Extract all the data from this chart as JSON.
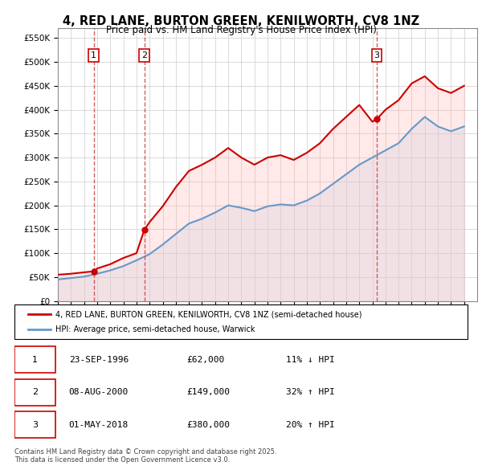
{
  "title": "4, RED LANE, BURTON GREEN, KENILWORTH, CV8 1NZ",
  "subtitle": "Price paid vs. HM Land Registry's House Price Index (HPI)",
  "ylabel_ticks": [
    "£0",
    "£50K",
    "£100K",
    "£150K",
    "£200K",
    "£250K",
    "£300K",
    "£350K",
    "£400K",
    "£450K",
    "£500K",
    "£550K"
  ],
  "ylim": [
    0,
    570000
  ],
  "ytick_values": [
    0,
    50000,
    100000,
    150000,
    200000,
    250000,
    300000,
    350000,
    400000,
    450000,
    500000,
    550000
  ],
  "xmin": 1994.0,
  "xmax": 2026.0,
  "sale_dates": [
    1996.73,
    2000.6,
    2018.33
  ],
  "sale_prices": [
    62000,
    149000,
    380000
  ],
  "sale_labels": [
    "1",
    "2",
    "3"
  ],
  "red_line_color": "#cc0000",
  "blue_line_color": "#6699cc",
  "blue_fill_color": "#cce0f0",
  "red_fill_color": "#ffcccc",
  "vline_color_1": "#8888cc",
  "vline_color_2": "#cc4444",
  "legend_entries": [
    "4, RED LANE, BURTON GREEN, KENILWORTH, CV8 1NZ (semi-detached house)",
    "HPI: Average price, semi-detached house, Warwick"
  ],
  "table_data": [
    [
      "1",
      "23-SEP-1996",
      "£62,000",
      "11% ↓ HPI"
    ],
    [
      "2",
      "08-AUG-2000",
      "£149,000",
      "32% ↑ HPI"
    ],
    [
      "3",
      "01-MAY-2018",
      "£380,000",
      "20% ↑ HPI"
    ]
  ],
  "footer": "Contains HM Land Registry data © Crown copyright and database right 2025.\nThis data is licensed under the Open Government Licence v3.0.",
  "background_color": "#ffffff",
  "hpi_years": [
    1994,
    1995,
    1996,
    1997,
    1998,
    1999,
    2000,
    2001,
    2002,
    2003,
    2004,
    2005,
    2006,
    2007,
    2008,
    2009,
    2010,
    2011,
    2012,
    2013,
    2014,
    2015,
    2016,
    2017,
    2018,
    2019,
    2020,
    2021,
    2022,
    2023,
    2024,
    2025
  ],
  "hpi_values": [
    45000,
    48000,
    51000,
    57000,
    64000,
    73000,
    85000,
    98000,
    118000,
    140000,
    162000,
    172000,
    185000,
    200000,
    195000,
    188000,
    198000,
    202000,
    200000,
    210000,
    225000,
    245000,
    265000,
    285000,
    300000,
    315000,
    330000,
    360000,
    385000,
    365000,
    355000,
    365000
  ],
  "property_years": [
    1994,
    1995,
    1996,
    1996.73,
    1997,
    1998,
    1999,
    2000,
    2000.6,
    2001,
    2002,
    2003,
    2004,
    2005,
    2006,
    2007,
    2008,
    2009,
    2010,
    2011,
    2012,
    2013,
    2014,
    2015,
    2016,
    2017,
    2018,
    2018.33,
    2019,
    2020,
    2021,
    2022,
    2023,
    2024,
    2025
  ],
  "property_values": [
    55000,
    57000,
    60000,
    62000,
    68000,
    77000,
    90000,
    100000,
    149000,
    165000,
    198000,
    238000,
    272000,
    285000,
    300000,
    320000,
    300000,
    285000,
    300000,
    305000,
    295000,
    310000,
    330000,
    360000,
    385000,
    410000,
    375000,
    380000,
    400000,
    420000,
    455000,
    470000,
    445000,
    435000,
    450000
  ]
}
